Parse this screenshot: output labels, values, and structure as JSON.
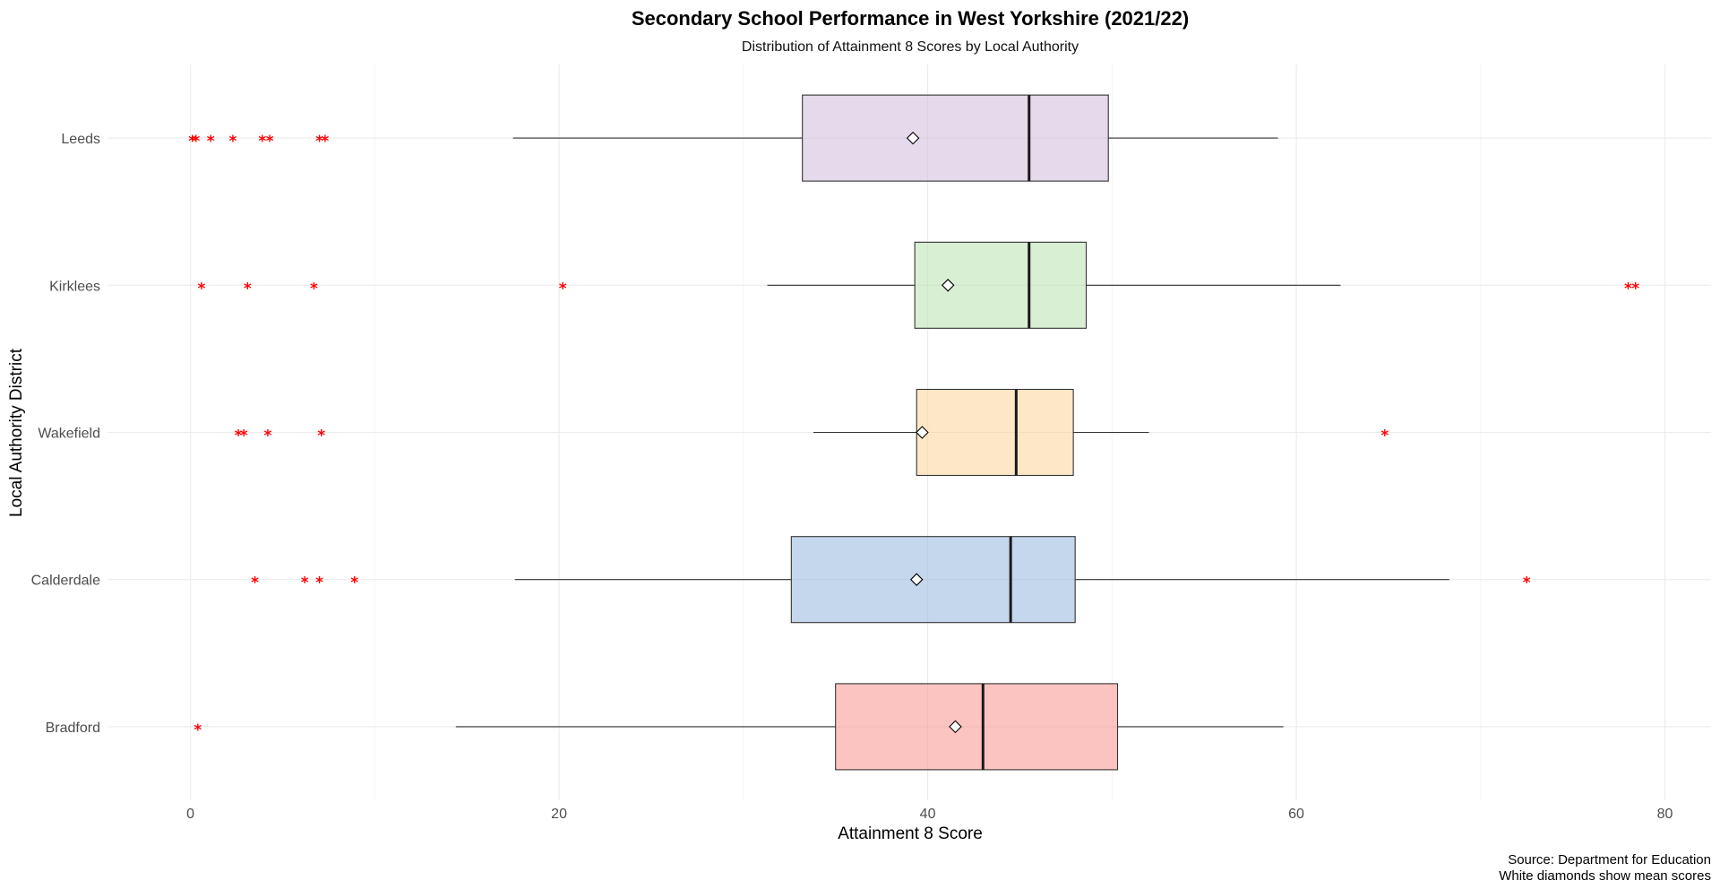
{
  "chart_data": {
    "type": "boxplot",
    "orientation": "horizontal",
    "title": "Secondary School Performance in West Yorkshire (2021/22)",
    "subtitle": "Distribution of Attainment 8 Scores by Local Authority",
    "xlabel": "Attainment 8 Score",
    "ylabel": "Local Authority District",
    "xlim": [
      -4.5,
      82.5
    ],
    "x_ticks": [
      0,
      20,
      40,
      60,
      80
    ],
    "x_tick_labels": [
      "0",
      "20",
      "40",
      "60",
      "80"
    ],
    "caption": [
      "Source: Department for Education",
      "White diamonds show mean scores"
    ],
    "grid": true,
    "legend": "none",
    "outlier_marker": "*",
    "categories": [
      "Leeds",
      "Kirklees",
      "Wakefield",
      "Calderdale",
      "Bradford"
    ],
    "series": [
      {
        "name": "Leeds",
        "whisker_low": 17.5,
        "q1": 33.2,
        "median": 45.5,
        "q3": 49.8,
        "whisker_high": 59.0,
        "mean": 39.2,
        "outliers": [
          0.1,
          0.3,
          1.1,
          2.3,
          3.9,
          4.3,
          7.0,
          7.3
        ],
        "color": "#ccb3d9"
      },
      {
        "name": "Kirklees",
        "whisker_low": 31.3,
        "q1": 39.3,
        "median": 45.5,
        "q3": 48.6,
        "whisker_high": 62.4,
        "mean": 41.1,
        "outliers": [
          0.6,
          3.1,
          6.7,
          20.2,
          78.0,
          78.4
        ],
        "color": "#b3e0a8"
      },
      {
        "name": "Wakefield",
        "whisker_low": 33.8,
        "q1": 39.4,
        "median": 44.8,
        "q3": 47.9,
        "whisker_high": 52.0,
        "mean": 39.7,
        "outliers": [
          2.6,
          2.9,
          4.2,
          7.1,
          64.8
        ],
        "color": "#fecf8d"
      },
      {
        "name": "Calderdale",
        "whisker_low": 17.6,
        "q1": 32.6,
        "median": 44.5,
        "q3": 48.0,
        "whisker_high": 68.3,
        "mean": 39.4,
        "outliers": [
          3.5,
          6.2,
          7.0,
          8.9,
          72.5
        ],
        "color": "#89afd9"
      },
      {
        "name": "Bradford",
        "whisker_low": 14.4,
        "q1": 35.0,
        "median": 43.0,
        "q3": 50.3,
        "whisker_high": 59.3,
        "mean": 41.5,
        "outliers": [
          0.4
        ],
        "color": "#fa8a83"
      }
    ]
  }
}
